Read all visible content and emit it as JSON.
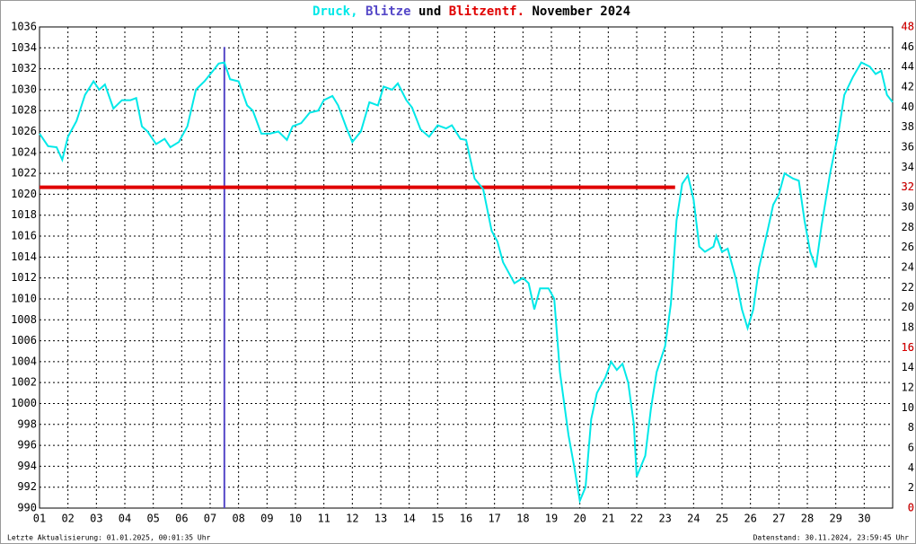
{
  "chart_data": {
    "type": "line",
    "title_middle": "und",
    "title_end": "November 2024",
    "footer_left": "Letzte Aktualisierung: 01.01.2025, 00:01:35 Uhr",
    "footer_right": "Datenstand: 30.11.2024, 23:59:45 Uhr",
    "xlim": [
      1,
      31
    ],
    "xticks": [
      {
        "value": 1,
        "label": "01"
      },
      {
        "value": 2,
        "label": "02"
      },
      {
        "value": 3,
        "label": "03"
      },
      {
        "value": 4,
        "label": "04"
      },
      {
        "value": 5,
        "label": "05"
      },
      {
        "value": 6,
        "label": "06"
      },
      {
        "value": 7,
        "label": "07"
      },
      {
        "value": 8,
        "label": "08"
      },
      {
        "value": 9,
        "label": "09"
      },
      {
        "value": 10,
        "label": "10"
      },
      {
        "value": 11,
        "label": "11"
      },
      {
        "value": 12,
        "label": "12"
      },
      {
        "value": 13,
        "label": "13"
      },
      {
        "value": 14,
        "label": "14"
      },
      {
        "value": 15,
        "label": "15"
      },
      {
        "value": 16,
        "label": "16"
      },
      {
        "value": 17,
        "label": "17"
      },
      {
        "value": 18,
        "label": "18"
      },
      {
        "value": 19,
        "label": "19"
      },
      {
        "value": 20,
        "label": "20"
      },
      {
        "value": 21,
        "label": "21"
      },
      {
        "value": 22,
        "label": "22"
      },
      {
        "value": 23,
        "label": "23"
      },
      {
        "value": 24,
        "label": "24"
      },
      {
        "value": 25,
        "label": "25"
      },
      {
        "value": 26,
        "label": "26"
      },
      {
        "value": 27,
        "label": "27"
      },
      {
        "value": 28,
        "label": "28"
      },
      {
        "value": 29,
        "label": "29"
      },
      {
        "value": 30,
        "label": "30"
      }
    ],
    "ylim": [
      990,
      1036
    ],
    "yticks": [
      990,
      992,
      994,
      996,
      998,
      1000,
      1002,
      1004,
      1006,
      1008,
      1010,
      1012,
      1014,
      1016,
      1018,
      1020,
      1022,
      1024,
      1026,
      1028,
      1030,
      1032,
      1034,
      1036
    ],
    "y2lim": [
      0,
      48
    ],
    "y2ticks": [
      0,
      2,
      4,
      6,
      8,
      10,
      12,
      14,
      16,
      18,
      20,
      22,
      24,
      26,
      28,
      30,
      32,
      34,
      36,
      38,
      40,
      42,
      44,
      46,
      48
    ],
    "y2_red_ticks": [
      0,
      16,
      32,
      48
    ],
    "y2_red_color": "#e00000",
    "grid": true,
    "series": [
      {
        "name": "Druck,",
        "type": "line",
        "color": "#00e8e8",
        "x": [
          1.0,
          1.3,
          1.6,
          1.8,
          2.0,
          2.3,
          2.6,
          2.9,
          3.1,
          3.3,
          3.6,
          3.9,
          4.2,
          4.4,
          4.6,
          4.8,
          5.1,
          5.4,
          5.6,
          5.9,
          6.2,
          6.5,
          6.8,
          7.1,
          7.3,
          7.5,
          7.7,
          8.0,
          8.3,
          8.5,
          8.8,
          9.1,
          9.4,
          9.7,
          9.9,
          10.2,
          10.5,
          10.8,
          11.0,
          11.3,
          11.5,
          11.8,
          12.0,
          12.3,
          12.6,
          12.9,
          13.1,
          13.4,
          13.6,
          13.9,
          14.1,
          14.4,
          14.7,
          15.0,
          15.3,
          15.5,
          15.8,
          16.0,
          16.3,
          16.6,
          16.9,
          17.1,
          17.3,
          17.5,
          17.7,
          18.0,
          18.2,
          18.4,
          18.6,
          18.9,
          19.1,
          19.3,
          19.6,
          19.8,
          20.0,
          20.2,
          20.4,
          20.6,
          20.9,
          21.1,
          21.3,
          21.5,
          21.7,
          21.9,
          22.0,
          22.3,
          22.5,
          22.7,
          23.0,
          23.2,
          23.4,
          23.6,
          23.8,
          24.0,
          24.2,
          24.4,
          24.7,
          24.8,
          25.0,
          25.2,
          25.5,
          25.7,
          25.9,
          26.1,
          26.3,
          26.6,
          26.8,
          27.0,
          27.2,
          27.5,
          27.7,
          27.9,
          28.1,
          28.3,
          28.5,
          28.8,
          29.1,
          29.3,
          29.6,
          29.9,
          30.2,
          30.4,
          30.6,
          30.8,
          31.0
        ],
        "values": [
          1025.8,
          1024.6,
          1024.5,
          1023.3,
          1025.5,
          1027,
          1029.5,
          1030.8,
          1030,
          1030.5,
          1028.2,
          1029,
          1029,
          1029.2,
          1026.5,
          1026,
          1024.8,
          1025.3,
          1024.5,
          1025,
          1026.5,
          1030,
          1030.8,
          1031.8,
          1032.5,
          1032.6,
          1031,
          1030.8,
          1028.5,
          1028,
          1025.8,
          1025.8,
          1026,
          1025.2,
          1026.5,
          1026.8,
          1027.8,
          1028,
          1029,
          1029.4,
          1028.5,
          1026.3,
          1025,
          1026,
          1028.8,
          1028.5,
          1030.3,
          1030,
          1030.6,
          1029,
          1028.3,
          1026.2,
          1025.5,
          1026.6,
          1026.3,
          1026.6,
          1025.3,
          1025.2,
          1021.5,
          1020.5,
          1016.5,
          1015.5,
          1013.5,
          1012.5,
          1011.5,
          1012,
          1011.5,
          1009,
          1011,
          1011,
          1010,
          1003,
          997,
          994,
          990.7,
          992,
          998.5,
          1001,
          1002.5,
          1004,
          1003.2,
          1003.8,
          1002,
          998,
          993,
          995,
          999.5,
          1003,
          1005.5,
          1009.5,
          1017.5,
          1021,
          1021.8,
          1019.5,
          1015,
          1014.5,
          1015,
          1016,
          1014.5,
          1014.8,
          1011.8,
          1009,
          1007.2,
          1009,
          1013,
          1016.5,
          1019,
          1020,
          1022,
          1021.5,
          1021.3,
          1017.5,
          1014.5,
          1013,
          1017,
          1022,
          1026,
          1029.5,
          1031.2,
          1032.6,
          1032.2,
          1031.5,
          1031.8,
          1029.5,
          1028.8
        ]
      },
      {
        "name": "Blitze",
        "type": "bar",
        "axis": "y2",
        "color": "#5548c8",
        "x": [
          7.5
        ],
        "values": [
          46
        ]
      },
      {
        "name": "Blitzentf.",
        "type": "line",
        "axis": "y2",
        "color": "#e00000",
        "x": [
          1,
          23.35
        ],
        "values": [
          32,
          32
        ]
      }
    ]
  }
}
